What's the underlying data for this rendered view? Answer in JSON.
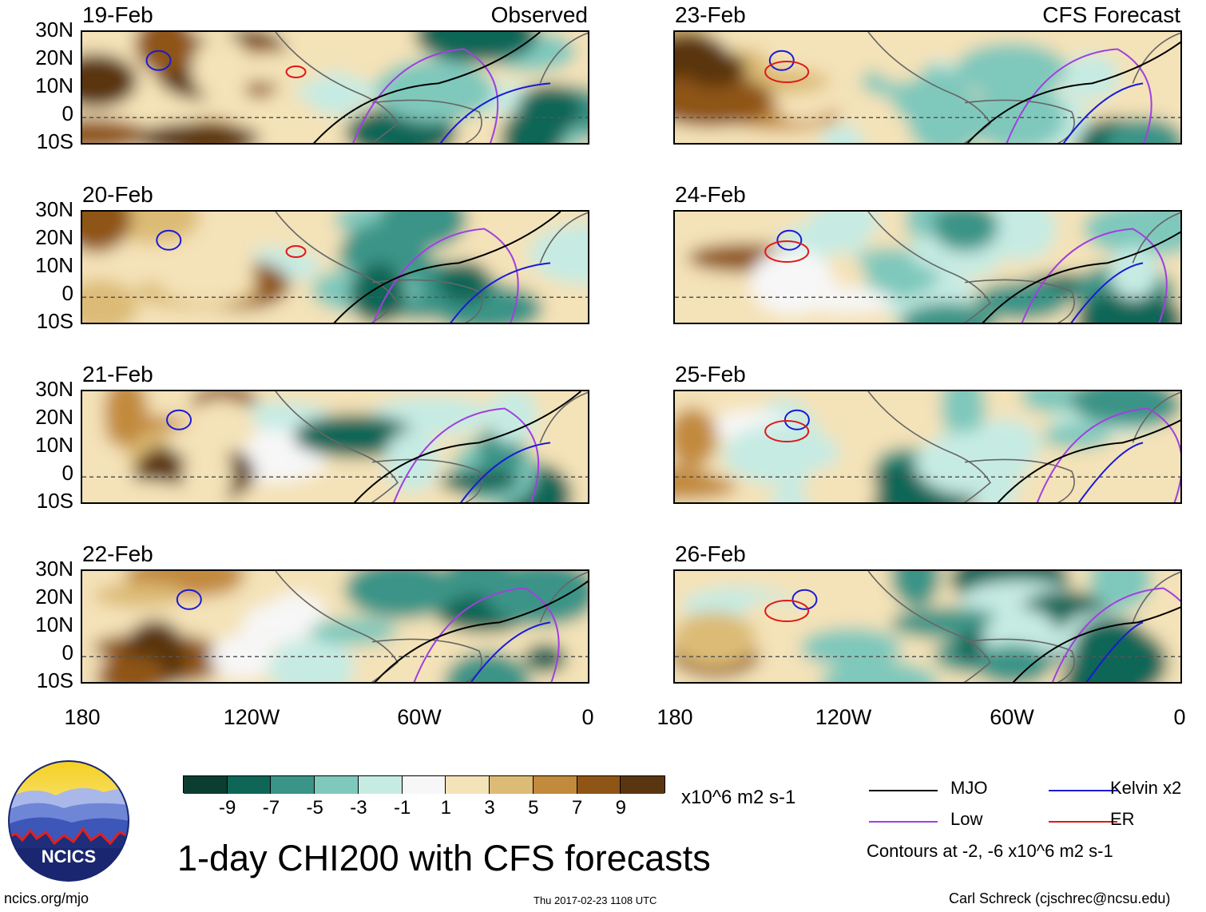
{
  "panels": {
    "left": [
      {
        "date": "19-Feb",
        "corner": "Observed"
      },
      {
        "date": "20-Feb",
        "corner": ""
      },
      {
        "date": "21-Feb",
        "corner": ""
      },
      {
        "date": "22-Feb",
        "corner": ""
      }
    ],
    "right": [
      {
        "date": "23-Feb",
        "corner": "CFS Forecast"
      },
      {
        "date": "24-Feb",
        "corner": ""
      },
      {
        "date": "25-Feb",
        "corner": ""
      },
      {
        "date": "26-Feb",
        "corner": ""
      }
    ]
  },
  "latitude_labels": [
    "30N",
    "20N",
    "10N",
    "0",
    "10S"
  ],
  "longitude_labels": [
    "180",
    "120W",
    "60W",
    "0"
  ],
  "colorbar": {
    "colors": [
      "#0b3d30",
      "#0f6656",
      "#3a9487",
      "#7fc8bc",
      "#c6ebe3",
      "#f7f7f7",
      "#f4e2b8",
      "#dcbb76",
      "#c28a3c",
      "#8f5516",
      "#5a3610"
    ],
    "ticks": [
      "-9",
      "-7",
      "-5",
      "-3",
      "-1",
      "1",
      "3",
      "5",
      "7",
      "9"
    ],
    "units": "x10^6 m2 s-1"
  },
  "legend": {
    "mjo": {
      "label": "MJO",
      "color": "#000000"
    },
    "kelvin": {
      "label": "Kelvin x2",
      "color": "#1a1ad6"
    },
    "low": {
      "label": "Low",
      "color": "#a040e0"
    },
    "er": {
      "label": "ER",
      "color": "#e01818"
    },
    "contours_note": "Contours at -2, -6 x10^6 m2 s-1"
  },
  "title": "1-day CHI200 with CFS forecasts",
  "logo_text": "NCICS",
  "footer": {
    "website": "ncics.org/mjo",
    "timestamp": "Thu 2017-02-23 1108 UTC",
    "author": "Carl Schreck (cjschrec@ncsu.edu)"
  }
}
